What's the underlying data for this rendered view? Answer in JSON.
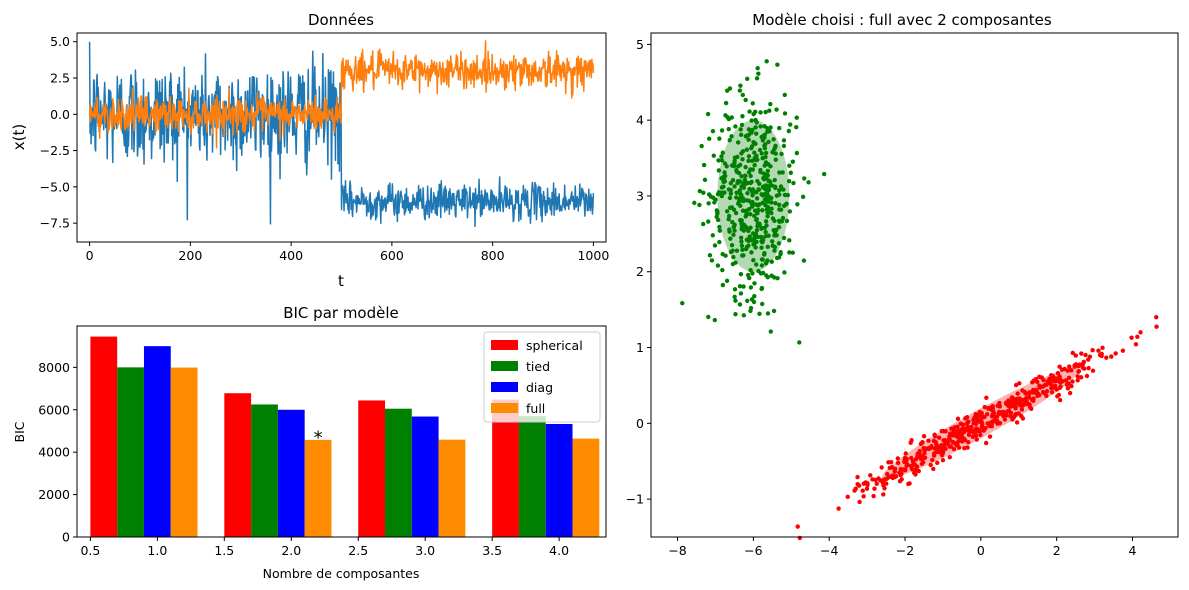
{
  "chart_data": [
    {
      "type": "line",
      "title": "Données",
      "xlabel": "t",
      "ylabel": "x(t)",
      "xlim": [
        -25,
        1025
      ],
      "ylim": [
        -8.8,
        5.6
      ],
      "x_ticks": [
        "0",
        "200",
        "400",
        "600",
        "800",
        "1000"
      ],
      "y_ticks": [
        "5.0",
        "2.5",
        "0.0",
        "−2.5",
        "−5.0",
        "−7.5"
      ],
      "series": [
        {
          "color": "#1f77b4",
          "segments": [
            {
              "x_start": 0,
              "x_end": 499,
              "mean": 0,
              "std": 1.8
            },
            {
              "x_start": 500,
              "x_end": 1000,
              "mean": -6.0,
              "std": 0.6
            }
          ]
        },
        {
          "color": "#ff7f0e",
          "segments": [
            {
              "x_start": 0,
              "x_end": 499,
              "mean": 0,
              "std": 0.6
            },
            {
              "x_start": 500,
              "x_end": 1000,
              "mean": 3.0,
              "std": 0.6
            }
          ]
        }
      ]
    },
    {
      "type": "bar",
      "title": "BIC par modèle",
      "xlabel": "Nombre de composantes",
      "ylabel": "BIC",
      "xlim": [
        0.4,
        4.35
      ],
      "ylim": [
        0,
        9950
      ],
      "x_ticks": [
        "0.5",
        "1.0",
        "1.5",
        "2.0",
        "2.5",
        "3.0",
        "3.5",
        "4.0"
      ],
      "y_ticks": [
        "0",
        "2000",
        "4000",
        "6000",
        "8000"
      ],
      "categories": [
        1,
        2,
        3,
        4
      ],
      "series": [
        {
          "name": "spherical",
          "color": "#ff0000",
          "values": [
            9450,
            6780,
            6440,
            6480
          ]
        },
        {
          "name": "tied",
          "color": "#008000",
          "values": [
            8000,
            6250,
            6050,
            5700
          ]
        },
        {
          "name": "diag",
          "color": "#0000ff",
          "values": [
            9000,
            6000,
            5680,
            5330
          ]
        },
        {
          "name": "full",
          "color": "#ff8c00",
          "values": [
            7990,
            4580,
            4590,
            4640
          ]
        }
      ],
      "annotation": {
        "text": "*",
        "x": 2.2,
        "y": 4880
      },
      "legend": "top-right"
    },
    {
      "type": "scatter",
      "title": "Modèle choisi : full avec 2 composantes",
      "xlim": [
        -8.7,
        5.2
      ],
      "ylim": [
        -1.5,
        5.15
      ],
      "x_ticks": [
        "−8",
        "−6",
        "−4",
        "−2",
        "0",
        "2",
        "4"
      ],
      "y_ticks": [
        "−1",
        "0",
        "1",
        "2",
        "3",
        "4",
        "5"
      ],
      "series": [
        {
          "color": "#008000",
          "n": 500,
          "mean": [
            -6.0,
            3.0
          ],
          "cov": [
            [
              0.34,
              0.0
            ],
            [
              0.0,
              0.45
            ]
          ],
          "ellipse": {
            "center": [
              -6.0,
              3.0
            ],
            "rx": 0.95,
            "ry": 1.0,
            "angle_deg": 0
          }
        },
        {
          "color": "#ff0000",
          "n": 500,
          "mean": [
            0.0,
            0.0
          ],
          "cov": [
            [
              2.6,
              0.72
            ],
            [
              0.72,
              0.21
            ]
          ],
          "ellipse": {
            "center": [
              0.0,
              0.0
            ],
            "rx": 2.7,
            "ry": 0.18,
            "angle_deg": 15.5
          }
        }
      ]
    }
  ]
}
